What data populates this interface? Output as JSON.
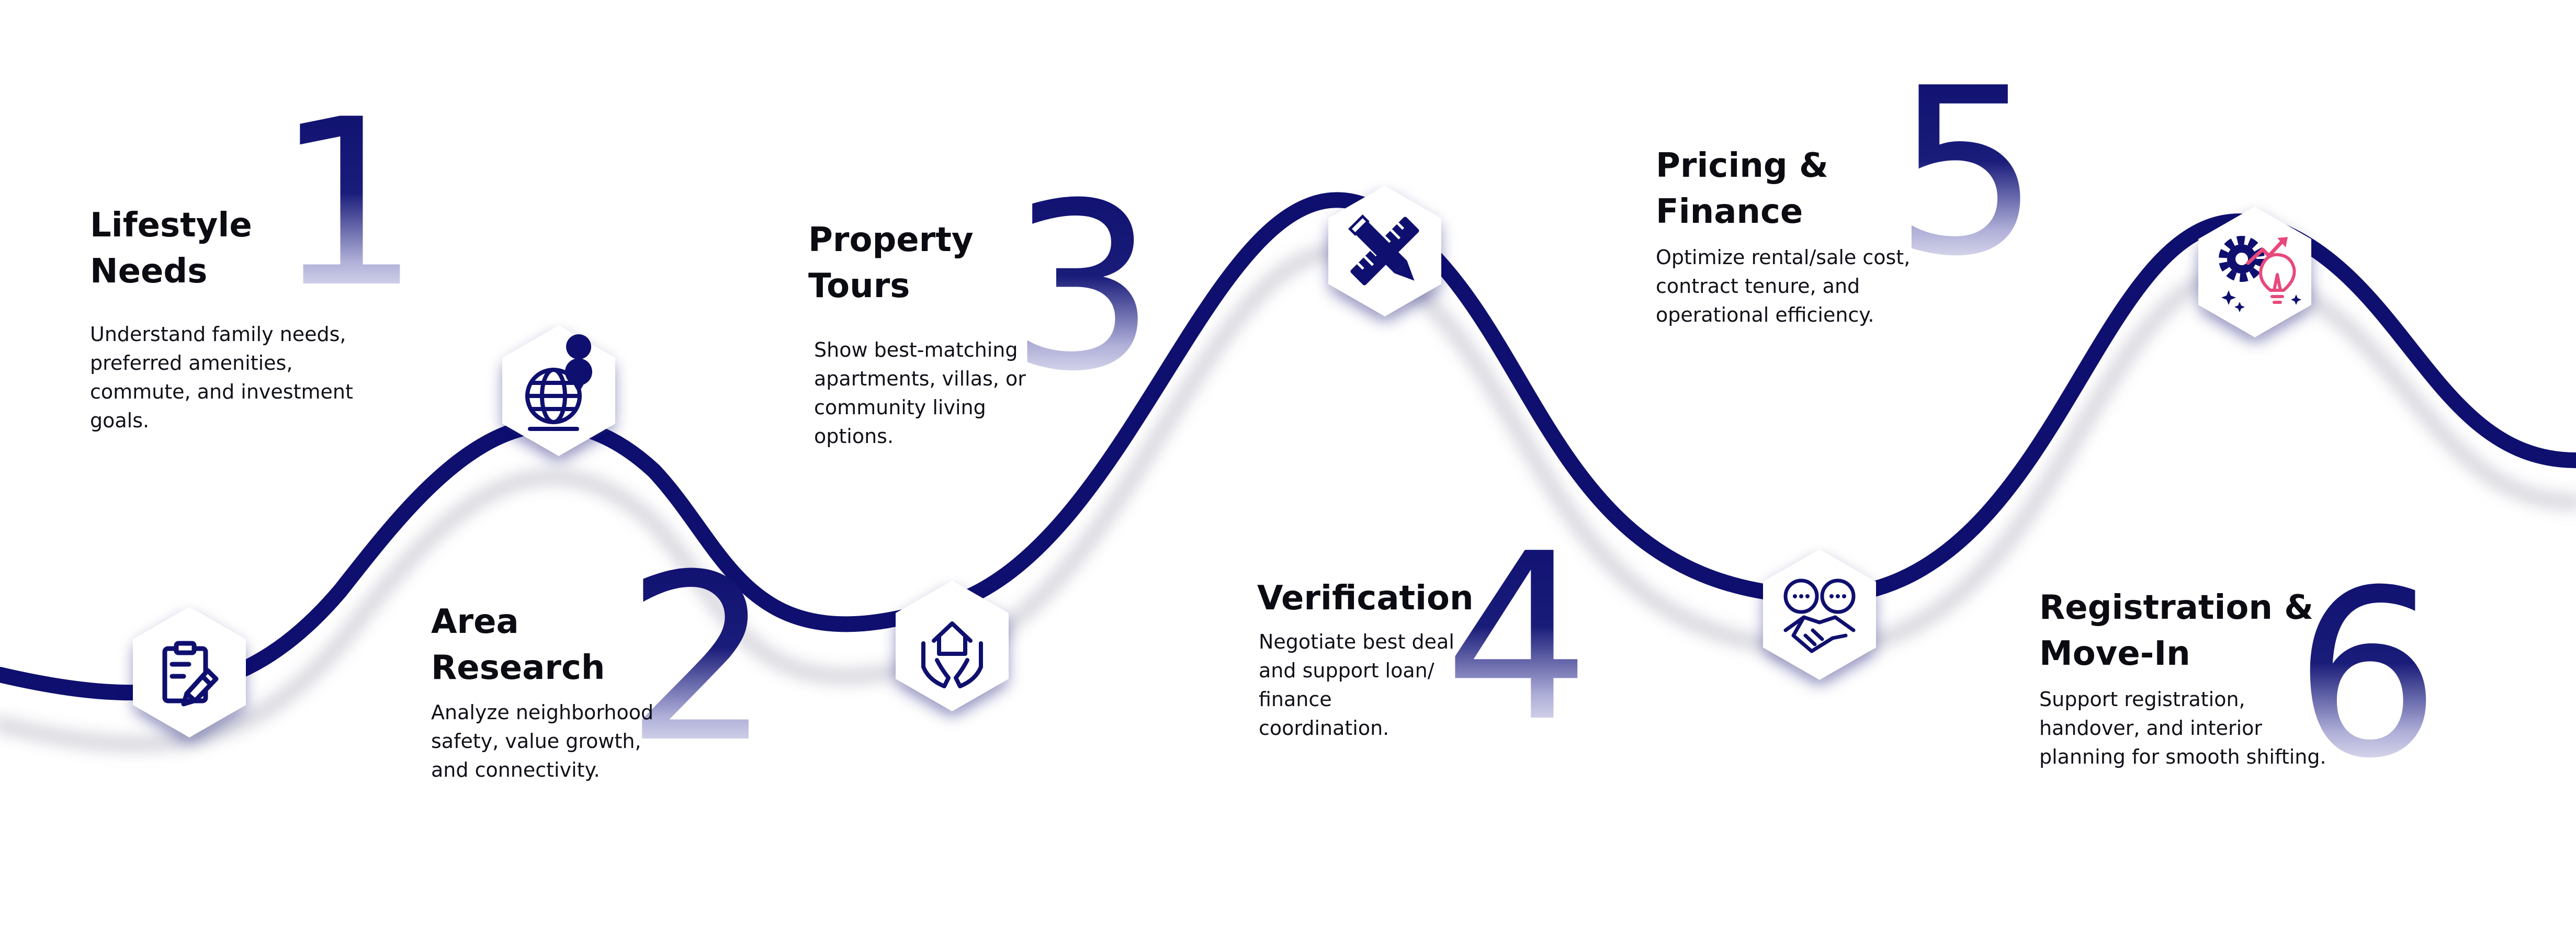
{
  "colors": {
    "navy": "#0e0f6e",
    "pink": "#e8497a",
    "hex_fill": "#ffffff",
    "text": "#0b0b12"
  },
  "steps": [
    {
      "number": "1",
      "title_lines": [
        "Lifestyle",
        "Needs"
      ],
      "desc_lines": [
        "Understand family needs,",
        "preferred amenities,",
        "commute, and investment",
        "goals."
      ],
      "icon": "clipboard-pen-icon"
    },
    {
      "number": "2",
      "title_lines": [
        "Area",
        "Research"
      ],
      "desc_lines": [
        "Analyze neighborhood",
        "safety, value growth,",
        "and connectivity."
      ],
      "icon": "globe-location-pin-icon"
    },
    {
      "number": "3",
      "title_lines": [
        "Property",
        "Tours"
      ],
      "desc_lines": [
        "Show best-matching",
        "apartments, villas, or",
        "community living",
        "options."
      ],
      "icon": "house-in-hands-icon"
    },
    {
      "number": "4",
      "title_lines": [
        "Verification"
      ],
      "desc_lines": [
        "Negotiate best deal",
        "and support  loan/",
        "finance",
        "coordination."
      ],
      "icon": "pencil-ruler-icon"
    },
    {
      "number": "5",
      "title_lines": [
        "Pricing &",
        "Finance"
      ],
      "desc_lines": [
        "Optimize rental/sale cost,",
        "contract tenure, and",
        "operational efficiency."
      ],
      "icon": "handshake-chat-icon"
    },
    {
      "number": "6",
      "title_lines": [
        "Registration &",
        "Move-In"
      ],
      "desc_lines": [
        "Support registration,",
        "handover, and interior",
        "planning for smooth shifting."
      ],
      "icon": "gear-bulb-growth-icon"
    }
  ]
}
